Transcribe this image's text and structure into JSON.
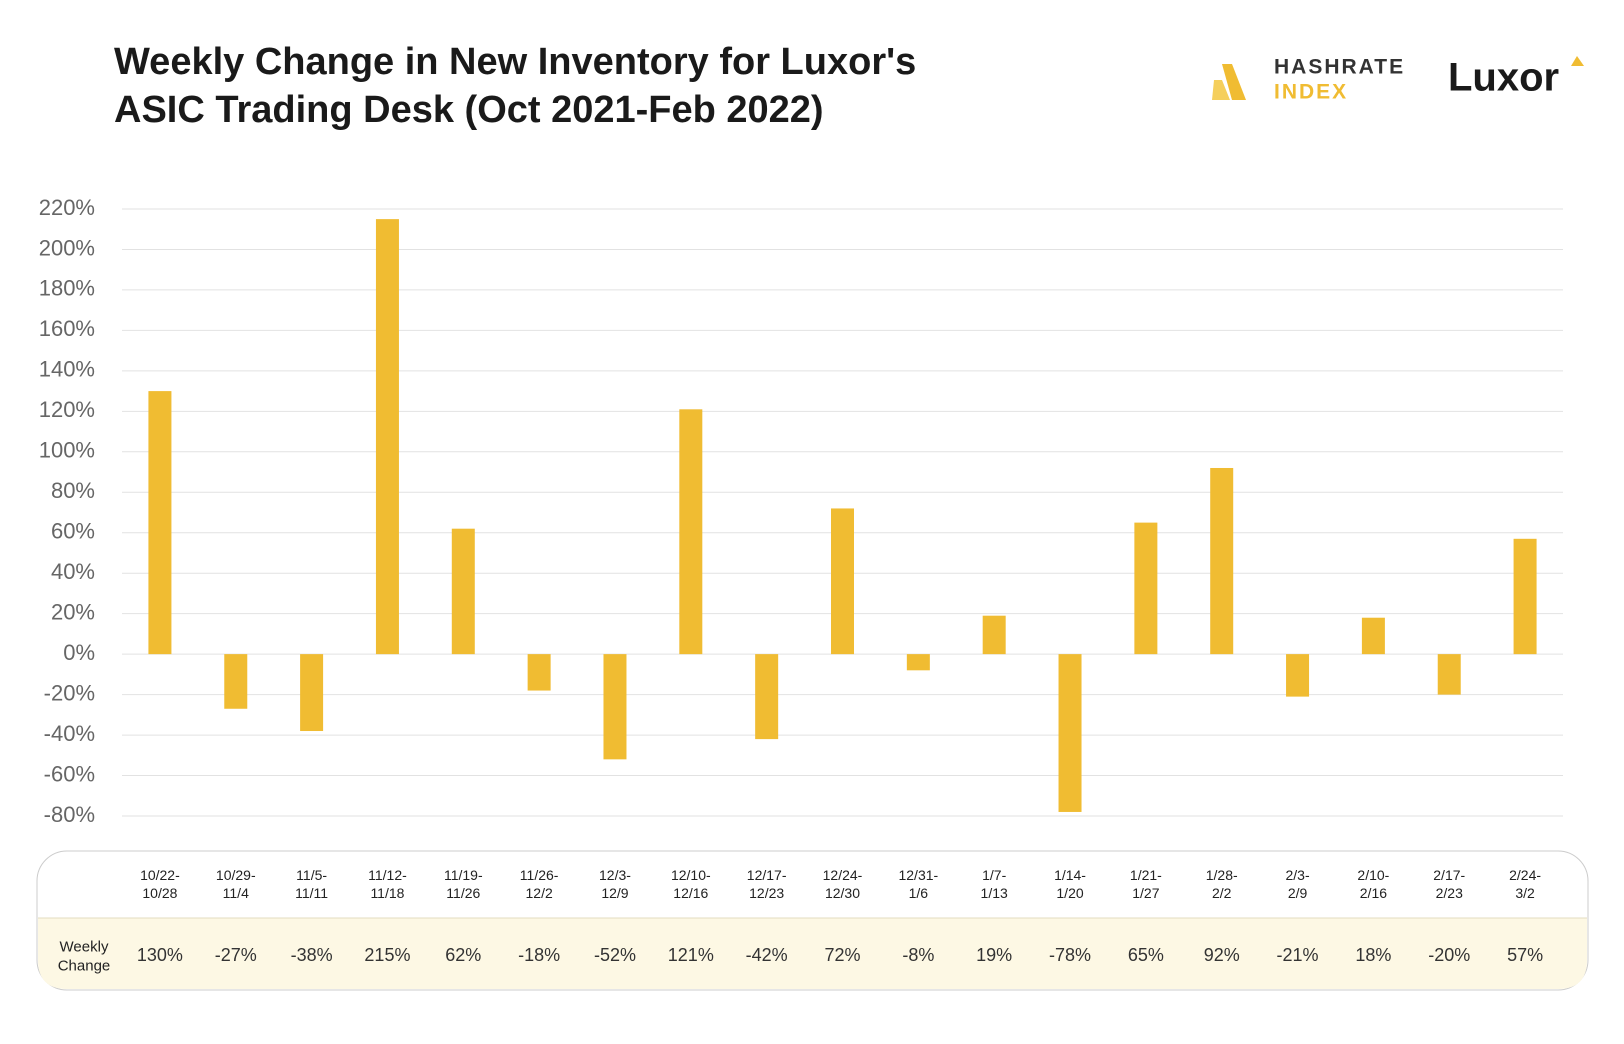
{
  "chart_data": {
    "type": "bar",
    "title": [
      "Weekly Change in New Inventory for Luxor's",
      "ASIC Trading Desk (Oct 2021-Feb 2022)"
    ],
    "categories": [
      "10/22-10/28",
      "10/29-11/4",
      "11/5-11/11",
      "11/12-11/18",
      "11/19-11/26",
      "11/26-12/2",
      "12/3-12/9",
      "12/10-12/16",
      "12/17-12/23",
      "12/24-12/30",
      "12/31-1/6",
      "1/7-1/13",
      "1/14-1/20",
      "1/21-1/27",
      "1/28-2/2",
      "2/3-2/9",
      "2/10-2/16",
      "2/17-2/23",
      "2/24-3/2"
    ],
    "values": [
      130,
      -27,
      -38,
      215,
      62,
      -18,
      -52,
      121,
      -42,
      72,
      -8,
      19,
      -78,
      65,
      92,
      -21,
      18,
      -20,
      57
    ],
    "value_labels": [
      "130%",
      "-27%",
      "-38%",
      "215%",
      "62%",
      "-18%",
      "-52%",
      "121%",
      "-42%",
      "72%",
      "-8%",
      "19%",
      "-78%",
      "65%",
      "92%",
      "-21%",
      "18%",
      "-20%",
      "57%"
    ],
    "row_label": "Weekly Change",
    "color": "#f0bc32",
    "ylim": [
      -80,
      220
    ],
    "yticks": [
      {
        "value": -80,
        "label": "-80%"
      },
      {
        "value": -60,
        "label": "-60%"
      },
      {
        "value": -40,
        "label": "-40%"
      },
      {
        "value": -20,
        "label": "-20%"
      },
      {
        "value": 0,
        "label": "0%"
      },
      {
        "value": 20,
        "label": "20%"
      },
      {
        "value": 40,
        "label": "40%"
      },
      {
        "value": 60,
        "label": "60%"
      },
      {
        "value": 80,
        "label": "80%"
      },
      {
        "value": 100,
        "label": "100%"
      },
      {
        "value": 120,
        "label": "120%"
      },
      {
        "value": 140,
        "label": "140%"
      },
      {
        "value": 160,
        "label": "160%"
      },
      {
        "value": 180,
        "label": "180%"
      },
      {
        "value": 200,
        "label": "200%"
      },
      {
        "value": 220,
        "label": "220%"
      }
    ],
    "grid": true
  },
  "logos": {
    "hashrate": "HASHRATE",
    "index": "INDEX",
    "luxor": "Luxor"
  }
}
